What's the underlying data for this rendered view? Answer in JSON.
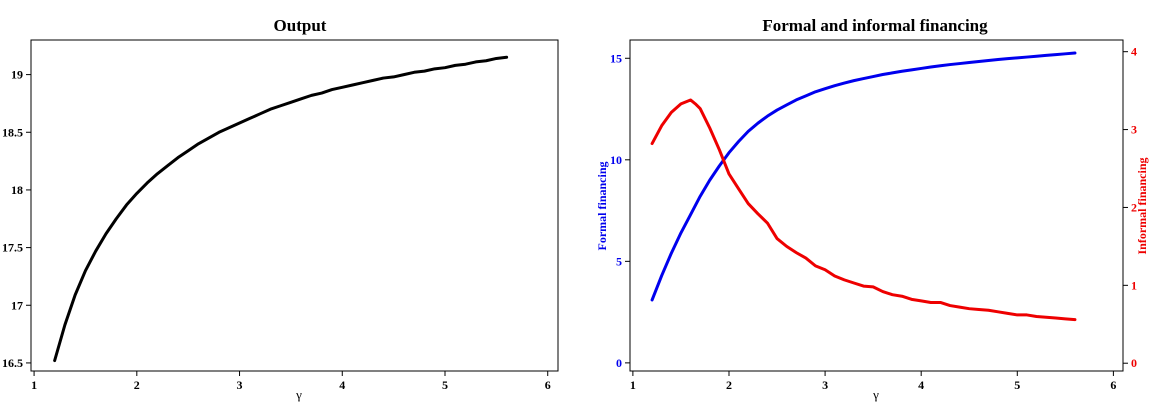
{
  "chart_data": [
    {
      "type": "line",
      "title": "Output",
      "xlabel": "γ",
      "ylabel": "",
      "xlim": [
        0.97,
        6.1
      ],
      "ylim": [
        16.43,
        19.3
      ],
      "xticks": [
        "1",
        "2",
        "3",
        "4",
        "5",
        "6"
      ],
      "yticks": [
        "16.5",
        "17",
        "17.5",
        "18",
        "18.5",
        "19"
      ],
      "grid": false,
      "colors": {
        "line": "#000000",
        "axis": "#000000"
      },
      "series": [
        {
          "x": [
            1.2,
            1.3,
            1.4,
            1.5,
            1.6,
            1.7,
            1.8,
            1.9,
            2.0,
            2.1,
            2.2,
            2.3,
            2.4,
            2.5,
            2.6,
            2.7,
            2.8,
            2.9,
            3.0,
            3.1,
            3.2,
            3.3,
            3.4,
            3.5,
            3.6,
            3.7,
            3.8,
            3.9,
            4.0,
            4.1,
            4.2,
            4.3,
            4.4,
            4.5,
            4.6,
            4.7,
            4.8,
            4.9,
            5.0,
            5.1,
            5.2,
            5.3,
            5.4,
            5.5,
            5.6
          ],
          "values": [
            16.52,
            16.83,
            17.09,
            17.3,
            17.47,
            17.62,
            17.75,
            17.87,
            17.97,
            18.06,
            18.14,
            18.21,
            18.28,
            18.34,
            18.4,
            18.45,
            18.5,
            18.54,
            18.58,
            18.62,
            18.66,
            18.7,
            18.73,
            18.76,
            18.79,
            18.82,
            18.84,
            18.87,
            18.89,
            18.91,
            18.93,
            18.95,
            18.97,
            18.98,
            19.0,
            19.02,
            19.03,
            19.05,
            19.06,
            19.08,
            19.09,
            19.11,
            19.12,
            19.14,
            19.15
          ]
        }
      ]
    },
    {
      "type": "line",
      "title": "Formal and informal financing",
      "xlabel": "γ",
      "xlim": [
        0.97,
        6.1
      ],
      "xticks": [
        "1",
        "2",
        "3",
        "4",
        "5",
        "6"
      ],
      "grid": false,
      "y_left": {
        "label": "Formal financing",
        "ylim": [
          -0.4,
          15.9
        ],
        "ticks": [
          "0",
          "5",
          "10",
          "15"
        ],
        "color": "#0000ee"
      },
      "y_right": {
        "label": "Informal financing",
        "ylim": [
          -0.1,
          4.15
        ],
        "ticks": [
          "0",
          "1",
          "2",
          "3",
          "4"
        ],
        "color": "#ee0000"
      },
      "series": [
        {
          "axis": "left",
          "color": "#0000ee",
          "x": [
            1.2,
            1.3,
            1.4,
            1.5,
            1.6,
            1.7,
            1.8,
            1.9,
            2.0,
            2.1,
            2.2,
            2.3,
            2.4,
            2.5,
            2.6,
            2.7,
            2.8,
            2.9,
            3.0,
            3.1,
            3.2,
            3.3,
            3.4,
            3.5,
            3.6,
            3.7,
            3.8,
            3.9,
            4.0,
            4.1,
            4.2,
            4.3,
            4.4,
            4.5,
            4.6,
            4.7,
            4.8,
            4.9,
            5.0,
            5.1,
            5.2,
            5.3,
            5.4,
            5.5,
            5.6
          ],
          "values": [
            3.1,
            4.3,
            5.4,
            6.4,
            7.3,
            8.2,
            9.0,
            9.7,
            10.35,
            10.9,
            11.4,
            11.8,
            12.15,
            12.45,
            12.7,
            12.95,
            13.15,
            13.35,
            13.5,
            13.65,
            13.78,
            13.9,
            14.0,
            14.1,
            14.2,
            14.28,
            14.36,
            14.43,
            14.5,
            14.57,
            14.63,
            14.69,
            14.74,
            14.79,
            14.84,
            14.89,
            14.94,
            14.98,
            15.02,
            15.06,
            15.1,
            15.14,
            15.18,
            15.22,
            15.26
          ]
        },
        {
          "axis": "right",
          "color": "#ee0000",
          "x": [
            1.2,
            1.3,
            1.4,
            1.5,
            1.6,
            1.65,
            1.7,
            1.8,
            1.9,
            2.0,
            2.1,
            2.2,
            2.3,
            2.4,
            2.5,
            2.6,
            2.7,
            2.8,
            2.9,
            3.0,
            3.1,
            3.2,
            3.3,
            3.4,
            3.5,
            3.6,
            3.7,
            3.8,
            3.9,
            4.0,
            4.1,
            4.2,
            4.3,
            4.4,
            4.5,
            4.6,
            4.7,
            4.8,
            4.9,
            5.0,
            5.1,
            5.2,
            5.3,
            5.4,
            5.5,
            5.6
          ],
          "values": [
            2.82,
            3.05,
            3.22,
            3.33,
            3.38,
            3.33,
            3.27,
            3.02,
            2.74,
            2.43,
            2.24,
            2.05,
            1.92,
            1.8,
            1.6,
            1.5,
            1.42,
            1.35,
            1.25,
            1.2,
            1.12,
            1.07,
            1.03,
            0.99,
            0.98,
            0.92,
            0.88,
            0.86,
            0.82,
            0.8,
            0.78,
            0.78,
            0.74,
            0.72,
            0.7,
            0.69,
            0.68,
            0.66,
            0.64,
            0.62,
            0.62,
            0.6,
            0.59,
            0.58,
            0.57,
            0.56
          ]
        }
      ]
    }
  ]
}
